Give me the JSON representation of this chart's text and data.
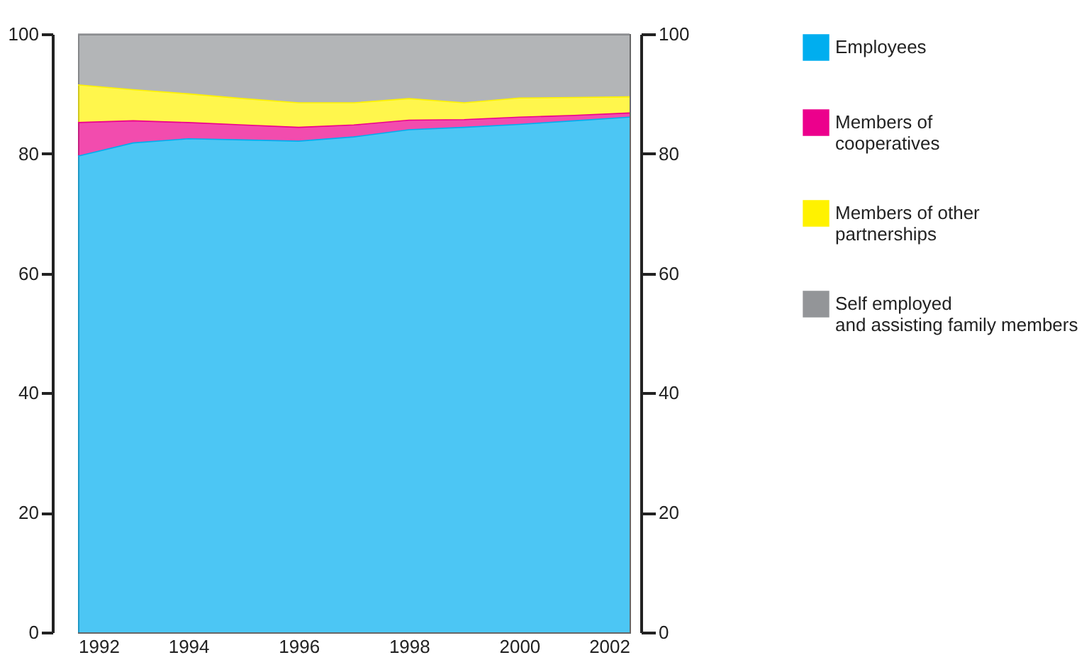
{
  "chart_data": {
    "type": "area",
    "stacked": true,
    "x": [
      1992,
      1993,
      1994,
      1995,
      1996,
      1997,
      1998,
      1999,
      2000,
      2001,
      2002
    ],
    "series": [
      {
        "name": "Employees",
        "color": "#00aeef",
        "values": [
          79.6,
          81.8,
          82.5,
          82.3,
          82.1,
          82.8,
          84.0,
          84.4,
          84.9,
          85.5,
          86.1
        ]
      },
      {
        "name": "Members of cooperatives",
        "color": "#ec008c",
        "values": [
          5.6,
          3.7,
          2.7,
          2.5,
          2.3,
          2.0,
          1.6,
          1.3,
          1.2,
          0.9,
          0.7
        ]
      },
      {
        "name": "Members of other partnerships",
        "color": "#fff200",
        "values": [
          6.3,
          5.2,
          4.8,
          4.4,
          4.1,
          3.7,
          3.6,
          2.8,
          3.2,
          3.0,
          2.7
        ]
      },
      {
        "name": "Self employed and assisting family members",
        "color": "#939598",
        "values": [
          8.5,
          9.3,
          10.0,
          10.8,
          11.5,
          11.5,
          10.8,
          11.5,
          10.7,
          10.6,
          10.5
        ]
      }
    ],
    "xlim": [
      1992,
      2002
    ],
    "xticks": [
      1992,
      1994,
      1996,
      1998,
      2000,
      2002
    ],
    "ylim": [
      0,
      100
    ],
    "yticks": [
      0,
      20,
      40,
      60,
      80,
      100
    ],
    "y2lim": [
      0,
      100
    ],
    "y2ticks": [
      0,
      20,
      40,
      60,
      80,
      100
    ],
    "grid": false,
    "legend": "right"
  }
}
